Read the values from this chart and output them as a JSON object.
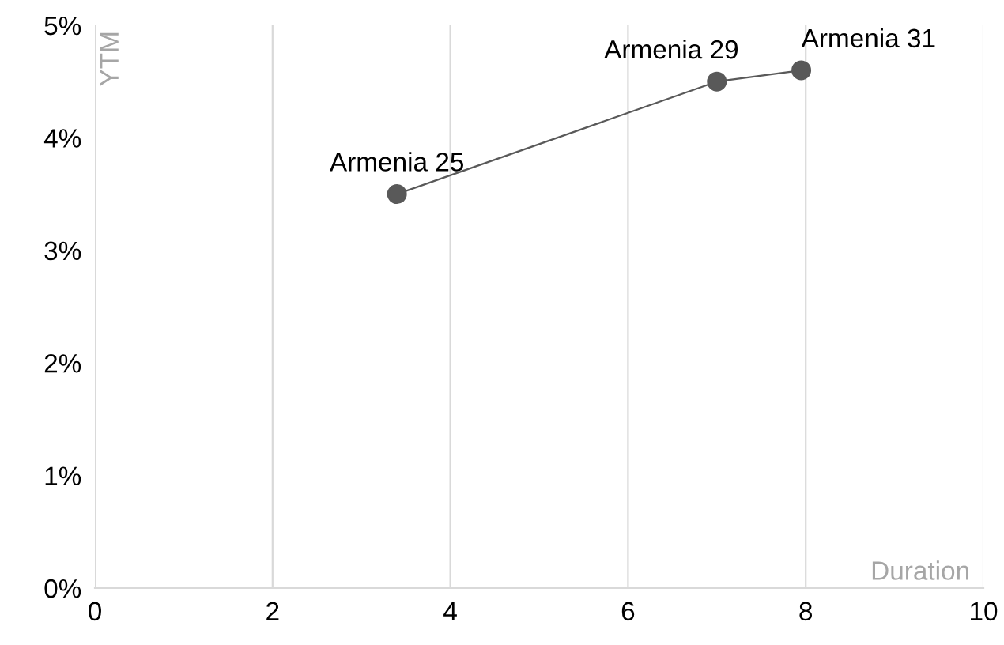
{
  "chart_data": {
    "type": "line",
    "xlabel": "Duration",
    "ylabel": "YTM",
    "series": [
      {
        "color": "#595959",
        "x": [
          3.4,
          7.0,
          7.95
        ],
        "values": [
          3.5,
          4.5,
          4.6
        ]
      }
    ],
    "marker": "circle",
    "line_style": "solid",
    "xlim": [
      0,
      10
    ],
    "xticks": [
      0,
      2,
      4,
      6,
      8,
      10
    ],
    "ylim": [
      0,
      5
    ],
    "yticks": [
      {
        "value": 0,
        "label": "0%"
      },
      {
        "value": 1,
        "label": "1%"
      },
      {
        "value": 2,
        "label": "2%"
      },
      {
        "value": 3,
        "label": "3%"
      },
      {
        "value": 4,
        "label": "4%"
      },
      {
        "value": 5,
        "label": "5%"
      }
    ],
    "grid": "x",
    "annotations": [
      {
        "text": "Armenia 25",
        "x": 3.4,
        "y": 3.5
      },
      {
        "text": "Armenia 29",
        "x": 7.0,
        "y": 4.5
      },
      {
        "text": "Armenia 31",
        "x": 7.95,
        "y": 4.6
      }
    ]
  }
}
